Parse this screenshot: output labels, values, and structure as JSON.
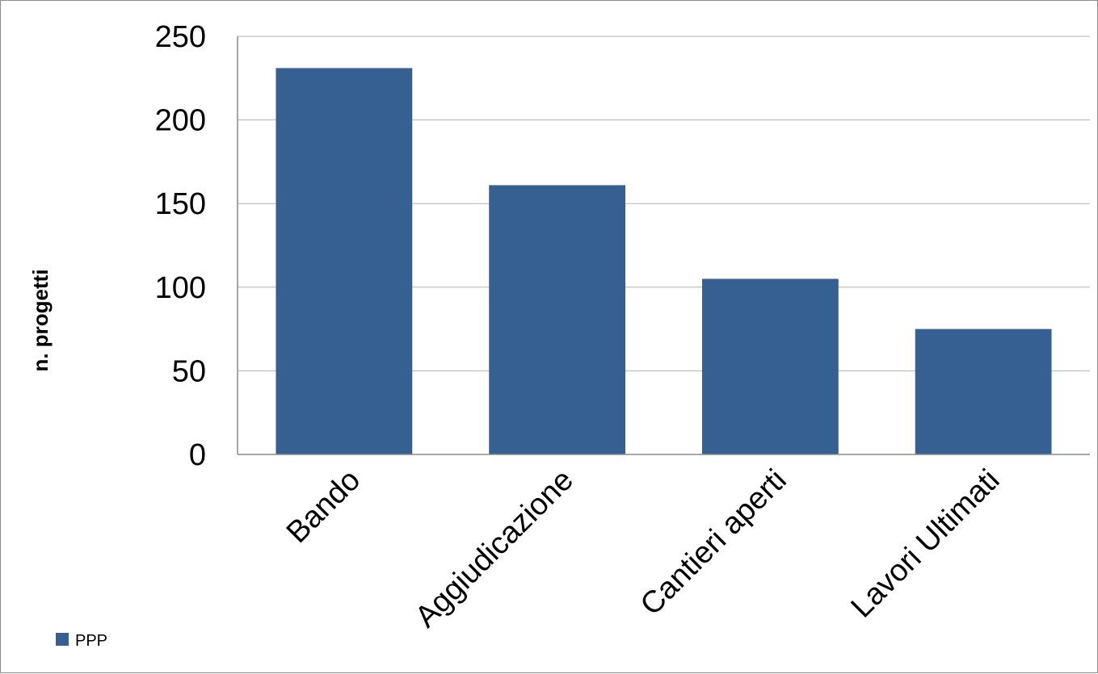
{
  "chart_data": {
    "type": "bar",
    "categories": [
      "Bando",
      "Aggiudicazione",
      "Cantieri aperti",
      "Lavori Ultimati"
    ],
    "series": [
      {
        "name": "PPP",
        "values": [
          231,
          161,
          105,
          75
        ]
      }
    ],
    "title": "",
    "xlabel": "",
    "ylabel": "n. progetti",
    "ylim": [
      0,
      250
    ],
    "yticks": [
      0,
      50,
      100,
      150,
      200,
      250
    ],
    "ytick_labels": [
      "0",
      "50",
      "100",
      "150",
      "200",
      "250"
    ],
    "grid": true,
    "legend_position": "bottom-left",
    "colors": {
      "bar": "#376092",
      "grid": "#b3b3b3",
      "axis": "#8c8c8c"
    }
  }
}
